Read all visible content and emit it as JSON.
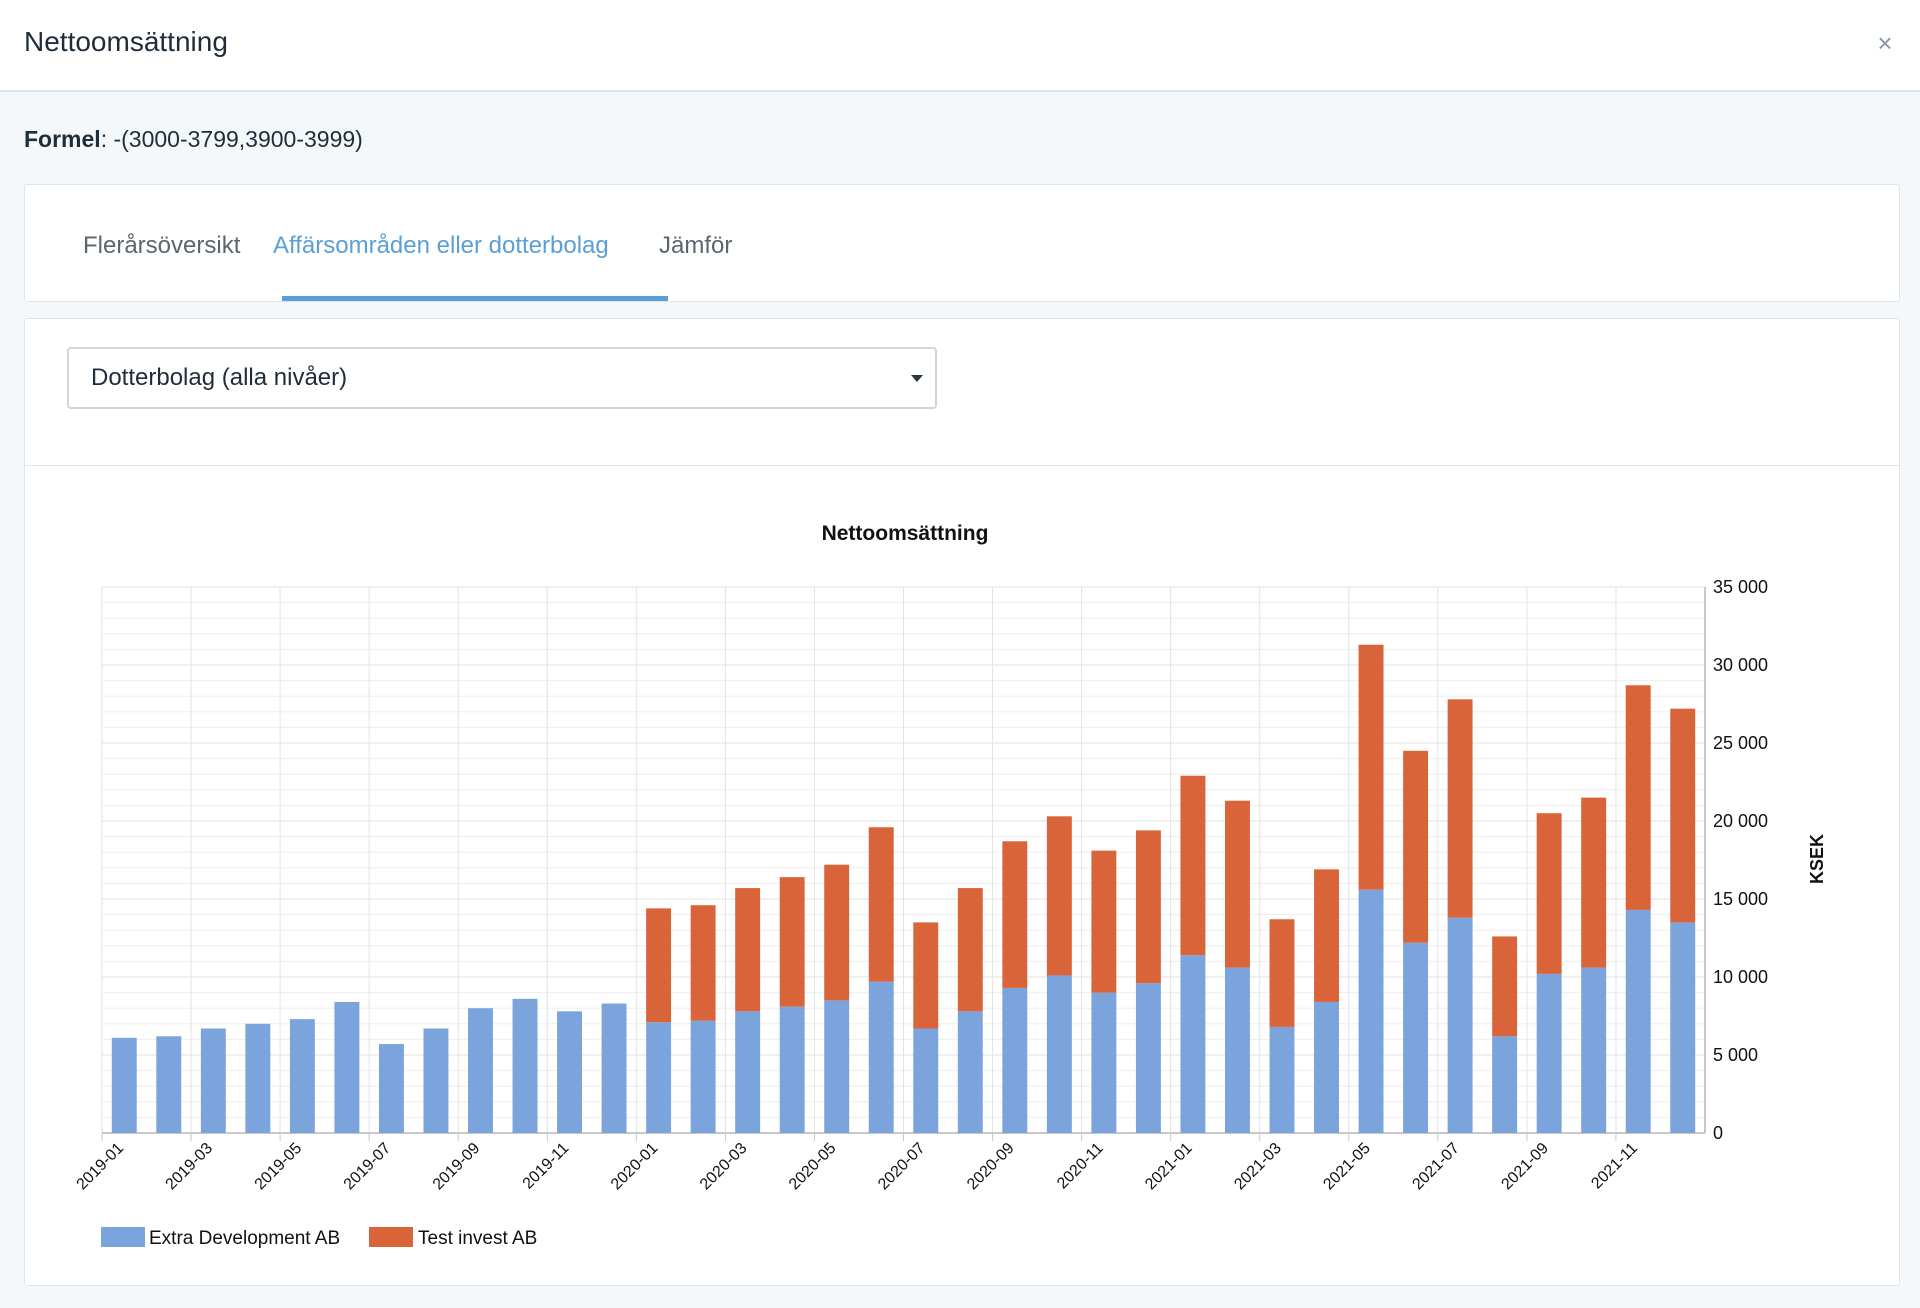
{
  "modal": {
    "title": "Nettoomsättning",
    "close_symbol": "×"
  },
  "formula": {
    "label": "Formel",
    "value": ": -(3000-3799,3900-3999)"
  },
  "tabs": [
    {
      "label": "Flerårsöversikt",
      "active": false
    },
    {
      "label": "Affärsområden eller dotterbolag",
      "active": true
    },
    {
      "label": "Jämför",
      "active": false
    }
  ],
  "filter": {
    "selected": "Dotterbolag (alla nivåer)"
  },
  "colors": {
    "accent": "#5a9fd6",
    "series_1": "#7ba3dc",
    "series_2": "#d9643a"
  },
  "chart_data": {
    "type": "bar",
    "stacked": true,
    "title": "Nettoomsättning",
    "ylabel": "KSEK",
    "ylim": [
      0,
      35000
    ],
    "y_ticks": [
      0,
      5000,
      10000,
      15000,
      20000,
      25000,
      30000,
      35000
    ],
    "y_tick_labels": [
      "0",
      "5 000",
      "10 000",
      "15 000",
      "20 000",
      "25 000",
      "30 000",
      "35 000"
    ],
    "y_axis_side": "right",
    "grid": true,
    "legend_position": "bottom-left",
    "categories": [
      "2019-01",
      "2019-02",
      "2019-03",
      "2019-04",
      "2019-05",
      "2019-06",
      "2019-07",
      "2019-08",
      "2019-09",
      "2019-10",
      "2019-11",
      "2019-12",
      "2020-01",
      "2020-02",
      "2020-03",
      "2020-04",
      "2020-05",
      "2020-06",
      "2020-07",
      "2020-08",
      "2020-09",
      "2020-10",
      "2020-11",
      "2020-12",
      "2021-01",
      "2021-02",
      "2021-03",
      "2021-04",
      "2021-05",
      "2021-06",
      "2021-07",
      "2021-08",
      "2021-09",
      "2021-10",
      "2021-11",
      "2021-12"
    ],
    "x_tick_labels": [
      "2019-01",
      "2019-03",
      "2019-05",
      "2019-07",
      "2019-09",
      "2019-11",
      "2020-01",
      "2020-03",
      "2020-05",
      "2020-07",
      "2020-09",
      "2020-11",
      "2021-01",
      "2021-03",
      "2021-05",
      "2021-07",
      "2021-09",
      "2021-11"
    ],
    "series": [
      {
        "name": "Extra Development AB",
        "values": [
          6100,
          6200,
          6700,
          7000,
          7300,
          8400,
          5700,
          6700,
          8000,
          8600,
          7800,
          8300,
          7100,
          7200,
          7800,
          8100,
          8500,
          9700,
          6700,
          7800,
          9300,
          10100,
          9000,
          9600,
          11400,
          10600,
          6800,
          8400,
          15600,
          12200,
          13800,
          6200,
          10200,
          10600,
          14300,
          13500
        ]
      },
      {
        "name": "Test invest AB",
        "values": [
          0,
          0,
          0,
          0,
          0,
          0,
          0,
          0,
          0,
          0,
          0,
          0,
          7300,
          7400,
          7900,
          8300,
          8700,
          9900,
          6800,
          7900,
          9400,
          10200,
          9100,
          9800,
          11500,
          10700,
          6900,
          8500,
          15700,
          12300,
          14000,
          6400,
          10300,
          10900,
          14400,
          13700
        ]
      }
    ]
  }
}
